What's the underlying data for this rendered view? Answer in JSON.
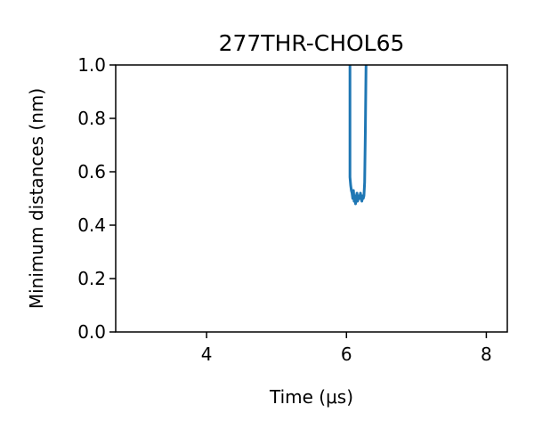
{
  "chart_data": {
    "type": "line",
    "title": "277THR-CHOL65",
    "xlabel": "Time (μs)",
    "ylabel": "Minimum distances (nm)",
    "xlim": [
      2.7,
      8.3
    ],
    "ylim": [
      0.0,
      1.0
    ],
    "xticks": [
      4,
      6,
      8
    ],
    "yticks": [
      0.0,
      0.2,
      0.4,
      0.6,
      0.8,
      1.0
    ],
    "xtick_labels": [
      "4",
      "6",
      "8"
    ],
    "ytick_labels": [
      "0.0",
      "0.2",
      "0.4",
      "0.6",
      "0.8",
      "1.0"
    ],
    "grid": false,
    "series": [
      {
        "color": "#1f77b4",
        "x": [
          6.05,
          6.05,
          6.06,
          6.07,
          6.08,
          6.09,
          6.1,
          6.11,
          6.12,
          6.13,
          6.14,
          6.15,
          6.16,
          6.17,
          6.18,
          6.19,
          6.2,
          6.21,
          6.22,
          6.23,
          6.24,
          6.25,
          6.26,
          6.27,
          6.28
        ],
        "y": [
          1.0,
          0.58,
          0.55,
          0.53,
          0.52,
          0.5,
          0.53,
          0.49,
          0.51,
          0.48,
          0.5,
          0.52,
          0.49,
          0.5,
          0.51,
          0.5,
          0.52,
          0.5,
          0.49,
          0.51,
          0.5,
          0.51,
          0.56,
          0.75,
          1.0
        ]
      }
    ]
  }
}
